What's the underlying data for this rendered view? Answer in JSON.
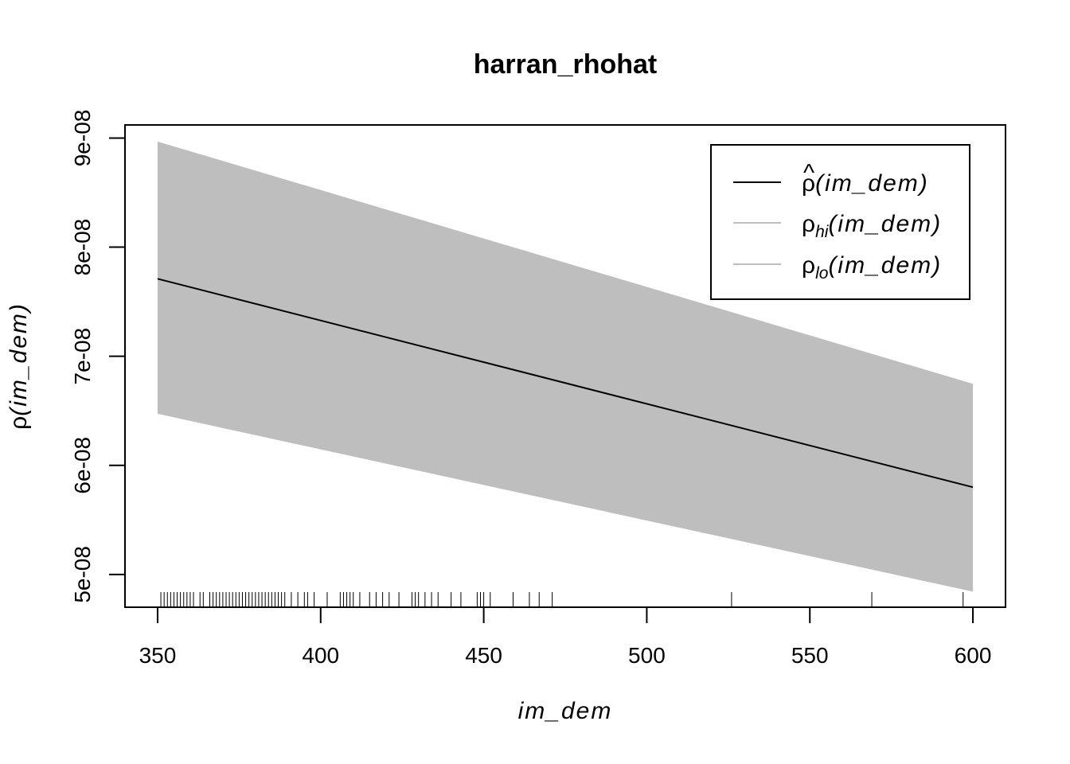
{
  "chart_data": {
    "type": "line",
    "title": "harran_rhohat",
    "xlabel": "im_dem",
    "ylabel": {
      "symbol": "ρ",
      "arg": "(im_dem)"
    },
    "xlim": [
      340,
      610
    ],
    "ylim": [
      4.7e-08,
      9.12e-08
    ],
    "x_ticks": [
      350,
      400,
      450,
      500,
      550,
      600
    ],
    "y_ticks": [
      5e-08,
      6e-08,
      7e-08,
      8e-08,
      9e-08
    ],
    "y_tick_labels": [
      "5e-08",
      "6e-08",
      "7e-08",
      "8e-08",
      "9e-08"
    ],
    "x": [
      350,
      600
    ],
    "series": [
      {
        "key": "rho_hat",
        "values": [
          7.71e-08,
          5.8e-08
        ],
        "color": "#000000"
      },
      {
        "key": "rho_hi",
        "values": [
          8.96e-08,
          6.74e-08
        ],
        "color": "#bebebe"
      },
      {
        "key": "rho_lo",
        "values": [
          6.48e-08,
          4.85e-08
        ],
        "color": "#bebebe"
      }
    ],
    "band_color": "#bebebe",
    "rug": [
      351,
      352,
      353,
      354,
      355,
      356,
      357,
      358,
      359,
      360,
      361,
      363,
      364,
      366,
      367,
      368,
      369,
      370,
      371,
      372,
      373,
      374,
      375,
      376,
      377,
      378,
      379,
      380,
      381,
      382,
      383,
      384,
      385,
      386,
      387,
      388,
      389,
      391,
      393,
      395,
      396,
      398,
      402,
      406,
      407,
      408,
      409,
      410,
      412,
      415,
      417,
      419,
      421,
      424,
      428,
      429,
      430,
      432,
      434,
      436,
      440,
      443,
      448,
      449,
      450,
      452,
      459,
      464,
      467,
      471,
      526,
      569,
      597
    ],
    "legend": {
      "position": "top-right",
      "entries": [
        {
          "symbol": "ρ",
          "hat": "^",
          "sub": "",
          "arg": "(im_dem)",
          "color": "#000000"
        },
        {
          "symbol": "ρ",
          "hat": "",
          "sub": "hi",
          "arg": "(im_dem)",
          "color": "#bebebe"
        },
        {
          "symbol": "ρ",
          "hat": "",
          "sub": "lo",
          "arg": "(im_dem)",
          "color": "#bebebe"
        }
      ]
    }
  }
}
